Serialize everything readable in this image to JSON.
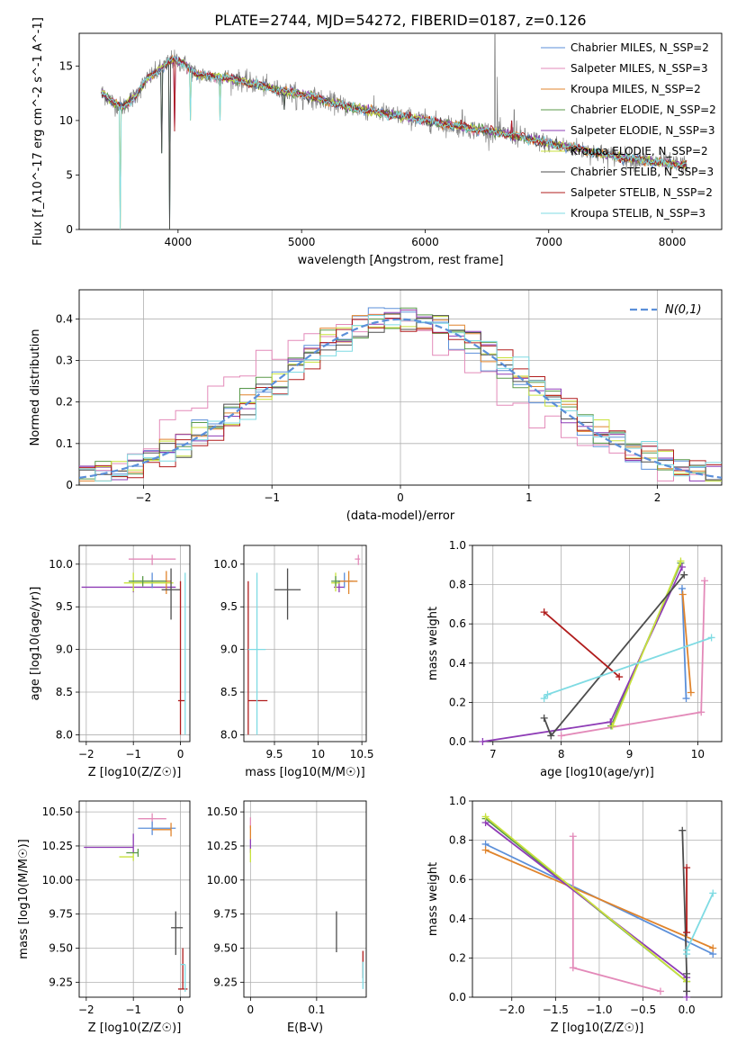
{
  "figure_title": "PLATE=2744, MJD=54272, FIBERID=0187, z=0.126",
  "colors": {
    "Chabrier MILES": "#5b8fd9",
    "Salpeter MILES": "#e38ab9",
    "Kroupa MILES": "#e0842c",
    "Chabrier ELODIE": "#5b9a4a",
    "Salpeter ELODIE": "#8e3cb6",
    "Kroupa ELODIE": "#c8e23c",
    "Chabrier STELIB": "#4d4d4d",
    "Salpeter STELIB": "#b01c1c",
    "Kroupa STELIB": "#7fdbe3",
    "data": "#808080",
    "normal": "#5b8fd9"
  },
  "chart_data": [
    {
      "id": "spectrum",
      "type": "line",
      "xlabel": "wavelength [Angstrom, rest frame]",
      "ylabel": "Flux [f_λ10^-17 erg cm^-2 s^-1 A^-1]",
      "xlim": [
        3200,
        8400
      ],
      "ylim": [
        0,
        18
      ],
      "xticks": [
        4000,
        5000,
        6000,
        7000,
        8000
      ],
      "yticks": [
        0,
        5,
        10,
        15
      ],
      "legend_loc": "right",
      "legend": [
        {
          "label": "Chabrier MILES, N_SSP=2",
          "series": "Chabrier MILES"
        },
        {
          "label": "Salpeter MILES, N_SSP=3",
          "series": "Salpeter MILES"
        },
        {
          "label": "Kroupa MILES, N_SSP=2",
          "series": "Kroupa MILES"
        },
        {
          "label": "Chabrier ELODIE, N_SSP=2",
          "series": "Chabrier ELODIE"
        },
        {
          "label": "Salpeter ELODIE, N_SSP=3",
          "series": "Salpeter ELODIE"
        },
        {
          "label": "Kroupa ELODIE, N_SSP=2",
          "series": "Kroupa ELODIE"
        },
        {
          "label": "Chabrier STELIB, N_SSP=3",
          "series": "Chabrier STELIB"
        },
        {
          "label": "Salpeter STELIB, N_SSP=2",
          "series": "Salpeter STELIB"
        },
        {
          "label": "Kroupa STELIB, N_SSP=3",
          "series": "Kroupa STELIB"
        }
      ],
      "continuum": [
        [
          3380,
          12.6
        ],
        [
          3420,
          12.2
        ],
        [
          3480,
          11.6
        ],
        [
          3550,
          11.2
        ],
        [
          3650,
          12.2
        ],
        [
          3750,
          13.8
        ],
        [
          3850,
          14.6
        ],
        [
          3950,
          15.6
        ],
        [
          4050,
          15.2
        ],
        [
          4150,
          14.2
        ],
        [
          4300,
          14.0
        ],
        [
          4450,
          13.8
        ],
        [
          4600,
          13.4
        ],
        [
          4800,
          12.8
        ],
        [
          5000,
          12.4
        ],
        [
          5200,
          11.8
        ],
        [
          5400,
          11.2
        ],
        [
          5600,
          10.8
        ],
        [
          5800,
          10.4
        ],
        [
          6000,
          10.0
        ],
        [
          6200,
          9.6
        ],
        [
          6400,
          9.2
        ],
        [
          6600,
          8.9
        ],
        [
          6800,
          8.4
        ],
        [
          7000,
          7.9
        ],
        [
          7200,
          7.5
        ],
        [
          7400,
          7.0
        ],
        [
          7600,
          6.6
        ],
        [
          7800,
          6.3
        ],
        [
          8000,
          6.0
        ],
        [
          8120,
          5.9
        ]
      ],
      "spikes": [
        [
          3530,
          0
        ],
        [
          3870,
          7
        ],
        [
          3930,
          0
        ],
        [
          3970,
          9
        ],
        [
          4100,
          10
        ],
        [
          4340,
          10
        ],
        [
          4860,
          11
        ],
        [
          5200,
          0
        ],
        [
          6560,
          0
        ],
        [
          6700,
          10
        ],
        [
          6800,
          0
        ],
        [
          7400,
          0
        ]
      ],
      "emission": [
        [
          6565,
          18
        ],
        [
          6584,
          14
        ],
        [
          6720,
          11
        ],
        [
          6740,
          10
        ],
        [
          6300,
          11
        ],
        [
          5010,
          11
        ],
        [
          4960,
          11
        ],
        [
          3728,
          14
        ]
      ]
    },
    {
      "id": "residuals",
      "type": "step-histogram",
      "xlabel": "(data-model)/error",
      "ylabel": "Normed distribution",
      "xlim": [
        -2.5,
        2.5
      ],
      "ylim": [
        0,
        0.47
      ],
      "xticks": [
        -2,
        -1,
        0,
        1,
        2
      ],
      "yticks": [
        0.0,
        0.1,
        0.2,
        0.3,
        0.4
      ],
      "legend_loc": "top-right",
      "legend": [
        {
          "label": "N(0,1)",
          "style": "dashed"
        }
      ],
      "bins": 40
    },
    {
      "id": "age-Z",
      "type": "errorbar",
      "xlabel": "Z [log10(Z/Z☉)]",
      "ylabel": "age [log10(age/yr)]",
      "xlim": [
        -2.15,
        0.2
      ],
      "ylim": [
        7.92,
        10.22
      ],
      "xticks": [
        -2,
        -1,
        0
      ],
      "yticks": [
        8.0,
        8.5,
        9.0,
        9.5,
        10.0
      ],
      "points": [
        {
          "series": "Salpeter MILES",
          "x": -0.6,
          "xerr": [
            0.5,
            0.5
          ],
          "y": 10.06,
          "yerr": [
            0.07,
            0.05
          ]
        },
        {
          "series": "Salpeter ELODIE",
          "x": -1.0,
          "xerr": [
            1.1,
            0.9
          ],
          "y": 9.73,
          "yerr": [
            0.06,
            0.08
          ]
        },
        {
          "series": "Chabrier MILES",
          "x": -0.6,
          "xerr": [
            0.45,
            0.4
          ],
          "y": 9.8,
          "yerr": [
            0.08,
            0.1
          ]
        },
        {
          "series": "Kroupa MILES",
          "x": -0.3,
          "xerr": [
            0.65,
            0.1
          ],
          "y": 9.8,
          "yerr": [
            0.15,
            0.12
          ]
        },
        {
          "series": "Kroupa ELODIE",
          "x": -1.0,
          "xerr": [
            0.2,
            0.85
          ],
          "y": 9.78,
          "yerr": [
            0.1,
            0.12
          ]
        },
        {
          "series": "Chabrier ELODIE",
          "x": -0.8,
          "xerr": [
            0.3,
            0.5
          ],
          "y": 9.8,
          "yerr": [
            0.06,
            0.06
          ]
        },
        {
          "series": "Chabrier STELIB",
          "x": -0.2,
          "xerr": [
            0.2,
            0.2
          ],
          "y": 9.7,
          "yerr": [
            0.35,
            0.25
          ]
        },
        {
          "series": "Salpeter STELIB",
          "x": 0.0,
          "xerr": [
            0.05,
            0.1
          ],
          "y": 8.4,
          "yerr": [
            0.4,
            1.4
          ]
        },
        {
          "series": "Kroupa STELIB",
          "x": 0.1,
          "xerr": [
            0.0,
            0.0
          ],
          "y": 9.0,
          "yerr": [
            1.0,
            0.9
          ]
        }
      ]
    },
    {
      "id": "age-mass",
      "type": "errorbar",
      "xlabel": "mass [log10(M/M☉)]",
      "ylabel": "",
      "xlim": [
        9.15,
        10.55
      ],
      "ylim": [
        7.92,
        10.22
      ],
      "xticks": [
        9.5,
        10.0,
        10.5
      ],
      "yticks": [
        8.0,
        8.5,
        9.0,
        9.5,
        10.0
      ],
      "points": [
        {
          "series": "Salpeter MILES",
          "x": 10.46,
          "xerr": [
            0.04,
            0.02
          ],
          "y": 10.06,
          "yerr": [
            0.07,
            0.05
          ]
        },
        {
          "series": "Salpeter ELODIE",
          "x": 10.24,
          "xerr": [
            0.06,
            0.06
          ],
          "y": 9.73,
          "yerr": [
            0.06,
            0.08
          ]
        },
        {
          "series": "Chabrier MILES",
          "x": 10.3,
          "xerr": [
            0.1,
            0.1
          ],
          "y": 9.8,
          "yerr": [
            0.08,
            0.1
          ]
        },
        {
          "series": "Kroupa MILES",
          "x": 10.35,
          "xerr": [
            0.1,
            0.1
          ],
          "y": 9.8,
          "yerr": [
            0.15,
            0.12
          ]
        },
        {
          "series": "Kroupa ELODIE",
          "x": 10.2,
          "xerr": [
            0.05,
            0.05
          ],
          "y": 9.78,
          "yerr": [
            0.1,
            0.12
          ]
        },
        {
          "series": "Chabrier ELODIE",
          "x": 10.2,
          "xerr": [
            0.05,
            0.05
          ],
          "y": 9.8,
          "yerr": [
            0.06,
            0.06
          ]
        },
        {
          "series": "Chabrier STELIB",
          "x": 9.65,
          "xerr": [
            0.15,
            0.15
          ],
          "y": 9.7,
          "yerr": [
            0.35,
            0.25
          ]
        },
        {
          "series": "Salpeter STELIB",
          "x": 9.2,
          "xerr": [
            0.0,
            0.22
          ],
          "y": 8.4,
          "yerr": [
            0.4,
            1.4
          ]
        },
        {
          "series": "Kroupa STELIB",
          "x": 9.3,
          "xerr": [
            0.1,
            0.1
          ],
          "y": 9.0,
          "yerr": [
            1.0,
            0.9
          ]
        }
      ]
    },
    {
      "id": "weight-age",
      "type": "line",
      "xlabel": "age [log10(age/yr)]",
      "ylabel": "mass weight",
      "xlim": [
        6.7,
        10.35
      ],
      "ylim": [
        0,
        1
      ],
      "xticks": [
        7,
        8,
        9,
        10
      ],
      "yticks": [
        0.0,
        0.2,
        0.4,
        0.6,
        0.8,
        1.0
      ],
      "series": [
        {
          "name": "Chabrier MILES",
          "x": [
            9.83,
            9.77
          ],
          "y": [
            0.22,
            0.78
          ]
        },
        {
          "name": "Salpeter MILES",
          "x": [
            8.0,
            10.05,
            10.1
          ],
          "y": [
            0.03,
            0.15,
            0.82
          ]
        },
        {
          "name": "Kroupa MILES",
          "x": [
            9.78,
            9.9
          ],
          "y": [
            0.75,
            0.25
          ]
        },
        {
          "name": "Chabrier ELODIE",
          "x": [
            8.73,
            9.75
          ],
          "y": [
            0.08,
            0.91
          ]
        },
        {
          "name": "Salpeter ELODIE",
          "x": [
            6.85,
            8.72,
            9.77
          ],
          "y": [
            0.0,
            0.1,
            0.89
          ]
        },
        {
          "name": "Kroupa ELODIE",
          "x": [
            8.75,
            9.75
          ],
          "y": [
            0.08,
            0.92
          ]
        },
        {
          "name": "Chabrier STELIB",
          "x": [
            7.75,
            7.85,
            9.8
          ],
          "y": [
            0.12,
            0.03,
            0.85
          ]
        },
        {
          "name": "Salpeter STELIB",
          "x": [
            7.75,
            8.85
          ],
          "y": [
            0.66,
            0.33
          ]
        },
        {
          "name": "Kroupa STELIB",
          "x": [
            7.75,
            7.8,
            10.2
          ],
          "y": [
            0.22,
            0.24,
            0.53
          ]
        }
      ]
    },
    {
      "id": "mass-Z",
      "type": "errorbar",
      "xlabel": "Z [log10(Z/Z☉)]",
      "ylabel": "mass [log10(M/M☉)]",
      "xlim": [
        -2.15,
        0.2
      ],
      "ylim": [
        9.14,
        10.58
      ],
      "xticks": [
        -2,
        -1,
        0
      ],
      "yticks": [
        9.25,
        9.5,
        9.75,
        10.0,
        10.25,
        10.5
      ],
      "points": [
        {
          "series": "Salpeter MILES",
          "x": -0.6,
          "xerr": [
            0.3,
            0.3
          ],
          "y": 10.45,
          "yerr": [
            0.05,
            0.04
          ]
        },
        {
          "series": "Salpeter ELODIE",
          "x": -1.0,
          "xerr": [
            1.05,
            0.0
          ],
          "y": 10.24,
          "yerr": [
            0.04,
            0.1
          ]
        },
        {
          "series": "Chabrier MILES",
          "x": -0.6,
          "xerr": [
            0.3,
            0.5
          ],
          "y": 10.38,
          "yerr": [
            0.05,
            0.05
          ]
        },
        {
          "series": "Kroupa MILES",
          "x": -0.2,
          "xerr": [
            0.4,
            0.0
          ],
          "y": 10.37,
          "yerr": [
            0.05,
            0.05
          ]
        },
        {
          "series": "Kroupa ELODIE",
          "x": -1.0,
          "xerr": [
            0.3,
            0.0
          ],
          "y": 10.17,
          "yerr": [
            0.03,
            0.03
          ]
        },
        {
          "series": "Chabrier ELODIE",
          "x": -0.9,
          "xerr": [
            0.25,
            0.0
          ],
          "y": 10.2,
          "yerr": [
            0.03,
            0.03
          ]
        },
        {
          "series": "Chabrier STELIB",
          "x": -0.1,
          "xerr": [
            0.1,
            0.15
          ],
          "y": 9.65,
          "yerr": [
            0.2,
            0.12
          ]
        },
        {
          "series": "Salpeter STELIB",
          "x": 0.05,
          "xerr": [
            0.1,
            0.1
          ],
          "y": 9.2,
          "yerr": [
            0.0,
            0.3
          ]
        },
        {
          "series": "Kroupa STELIB",
          "x": 0.1,
          "xerr": [
            0.1,
            0.0
          ],
          "y": 9.38,
          "yerr": [
            0.2,
            0.0
          ]
        }
      ]
    },
    {
      "id": "mass-ebv",
      "type": "errorbar",
      "xlabel": "E(B-V)",
      "ylabel": "",
      "xlim": [
        -0.01,
        0.175
      ],
      "ylim": [
        9.14,
        10.58
      ],
      "xticks": [
        0.0,
        0.1
      ],
      "yticks": [
        9.25,
        9.5,
        9.75,
        10.0,
        10.25,
        10.5
      ],
      "points": [
        {
          "series": "Salpeter MILES",
          "x": 0.0,
          "xerr": [
            0.0,
            0.0
          ],
          "y": 10.42,
          "yerr": [
            0.04,
            0.04
          ]
        },
        {
          "series": "Kroupa MILES",
          "x": 0.0,
          "xerr": [
            0.0,
            0.0
          ],
          "y": 10.35,
          "yerr": [
            0.05,
            0.05
          ]
        },
        {
          "series": "Salpeter ELODIE",
          "x": 0.0,
          "xerr": [
            0.0,
            0.0
          ],
          "y": 10.25,
          "yerr": [
            0.05,
            0.05
          ]
        },
        {
          "series": "Kroupa ELODIE",
          "x": 0.0,
          "xerr": [
            0.0,
            0.0
          ],
          "y": 10.18,
          "yerr": [
            0.05,
            0.05
          ]
        },
        {
          "series": "Chabrier STELIB",
          "x": 0.13,
          "xerr": [
            0.0,
            0.0
          ],
          "y": 9.62,
          "yerr": [
            0.15,
            0.15
          ]
        },
        {
          "series": "Salpeter STELIB",
          "x": 0.17,
          "xerr": [
            0.0,
            0.0
          ],
          "y": 9.38,
          "yerr": [
            0.1,
            0.1
          ]
        },
        {
          "series": "Kroupa STELIB",
          "x": 0.17,
          "xerr": [
            0.0,
            0.0
          ],
          "y": 9.3,
          "yerr": [
            0.1,
            0.1
          ]
        }
      ]
    },
    {
      "id": "weight-Z",
      "type": "line",
      "xlabel": "Z [log10(Z/Z☉)]",
      "ylabel": "mass weight",
      "xlim": [
        -2.45,
        0.4
      ],
      "ylim": [
        0,
        1
      ],
      "xticks": [
        -2.0,
        -1.5,
        -1.0,
        -0.5,
        0.0
      ],
      "yticks": [
        0.0,
        0.2,
        0.4,
        0.6,
        0.8,
        1.0
      ],
      "series": [
        {
          "name": "Chabrier MILES",
          "x": [
            -2.3,
            0.3
          ],
          "y": [
            0.78,
            0.22
          ]
        },
        {
          "name": "Salpeter MILES",
          "x": [
            -0.3,
            -1.3,
            -1.3
          ],
          "y": [
            0.03,
            0.15,
            0.82
          ]
        },
        {
          "name": "Kroupa MILES",
          "x": [
            -2.3,
            0.3
          ],
          "y": [
            0.75,
            0.25
          ]
        },
        {
          "name": "Chabrier ELODIE",
          "x": [
            -2.3,
            0.0
          ],
          "y": [
            0.91,
            0.08
          ]
        },
        {
          "name": "Salpeter ELODIE",
          "x": [
            -2.3,
            0.0,
            0.0
          ],
          "y": [
            0.89,
            0.1,
            0.0
          ]
        },
        {
          "name": "Kroupa ELODIE",
          "x": [
            -2.3,
            0.0
          ],
          "y": [
            0.92,
            0.08
          ]
        },
        {
          "name": "Chabrier STELIB",
          "x": [
            -0.05,
            0.0,
            0.0
          ],
          "y": [
            0.85,
            0.12,
            0.03
          ]
        },
        {
          "name": "Salpeter STELIB",
          "x": [
            0.0,
            0.0
          ],
          "y": [
            0.66,
            0.33
          ]
        },
        {
          "name": "Kroupa STELIB",
          "x": [
            0.0,
            0.0,
            0.3
          ],
          "y": [
            0.22,
            0.24,
            0.53
          ]
        }
      ]
    }
  ]
}
